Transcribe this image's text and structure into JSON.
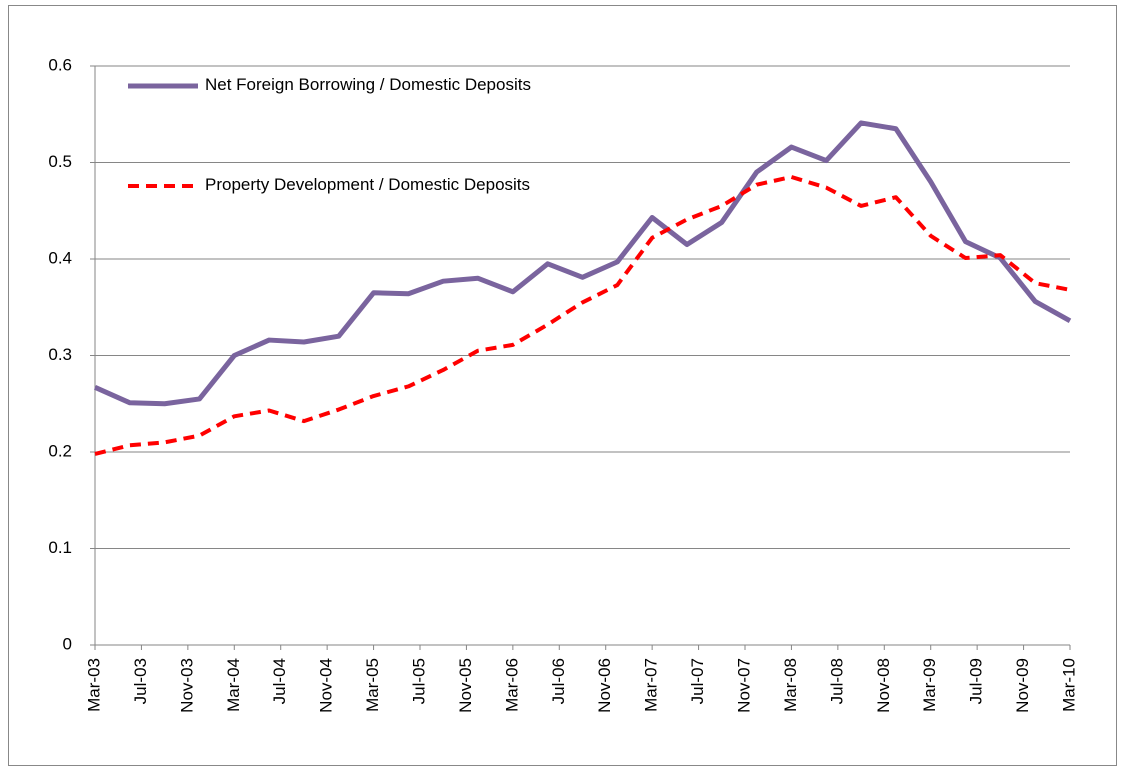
{
  "chart_data": {
    "type": "line",
    "x": [
      "2003-03",
      "2003-06",
      "2003-09",
      "2003-12",
      "2004-03",
      "2004-06",
      "2004-09",
      "2004-12",
      "2005-03",
      "2005-06",
      "2005-09",
      "2005-12",
      "2006-03",
      "2006-06",
      "2006-09",
      "2006-12",
      "2007-03",
      "2007-06",
      "2007-09",
      "2007-12",
      "2008-03",
      "2008-06",
      "2008-09",
      "2008-12",
      "2009-03",
      "2009-06",
      "2009-09",
      "2009-12",
      "2010-03"
    ],
    "series": [
      {
        "name": "Net Foreign Borrowing / Domestic Deposits",
        "color": "#7a649e",
        "dash": "solid",
        "values": [
          0.267,
          0.251,
          0.25,
          0.255,
          0.3,
          0.316,
          0.314,
          0.32,
          0.365,
          0.364,
          0.377,
          0.38,
          0.366,
          0.395,
          0.381,
          0.397,
          0.443,
          0.415,
          0.438,
          0.49,
          0.516,
          0.502,
          0.541,
          0.535,
          0.48,
          0.418,
          0.401,
          0.356,
          0.336
        ]
      },
      {
        "name": "Property Development / Domestic Deposits",
        "color": "#ff0000",
        "dash": "dashed",
        "values": [
          0.198,
          0.207,
          0.21,
          0.217,
          0.237,
          0.243,
          0.232,
          0.244,
          0.258,
          0.268,
          0.285,
          0.305,
          0.311,
          0.332,
          0.355,
          0.373,
          0.422,
          0.441,
          0.455,
          0.477,
          0.485,
          0.474,
          0.455,
          0.464,
          0.424,
          0.401,
          0.404,
          0.375,
          0.368
        ]
      }
    ],
    "xlim": [
      "2003-03",
      "2010-03"
    ],
    "xticks": [
      {
        "value": "2003-03",
        "label": "Mar-03"
      },
      {
        "value": "2003-07",
        "label": "Jul-03"
      },
      {
        "value": "2003-11",
        "label": "Nov-03"
      },
      {
        "value": "2004-03",
        "label": "Mar-04"
      },
      {
        "value": "2004-07",
        "label": "Jul-04"
      },
      {
        "value": "2004-11",
        "label": "Nov-04"
      },
      {
        "value": "2005-03",
        "label": "Mar-05"
      },
      {
        "value": "2005-07",
        "label": "Jul-05"
      },
      {
        "value": "2005-11",
        "label": "Nov-05"
      },
      {
        "value": "2006-03",
        "label": "Mar-06"
      },
      {
        "value": "2006-07",
        "label": "Jul-06"
      },
      {
        "value": "2006-11",
        "label": "Nov-06"
      },
      {
        "value": "2007-03",
        "label": "Mar-07"
      },
      {
        "value": "2007-07",
        "label": "Jul-07"
      },
      {
        "value": "2007-11",
        "label": "Nov-07"
      },
      {
        "value": "2008-03",
        "label": "Mar-08"
      },
      {
        "value": "2008-07",
        "label": "Jul-08"
      },
      {
        "value": "2008-11",
        "label": "Nov-08"
      },
      {
        "value": "2009-03",
        "label": "Mar-09"
      },
      {
        "value": "2009-07",
        "label": "Jul-09"
      },
      {
        "value": "2009-11",
        "label": "Nov-09"
      },
      {
        "value": "2010-03",
        "label": "Mar-10"
      }
    ],
    "ylim": [
      0,
      0.6
    ],
    "yticks": [
      0,
      0.1,
      0.2,
      0.3,
      0.4,
      0.5,
      0.6
    ],
    "grid": true,
    "legend": "upper-left"
  }
}
